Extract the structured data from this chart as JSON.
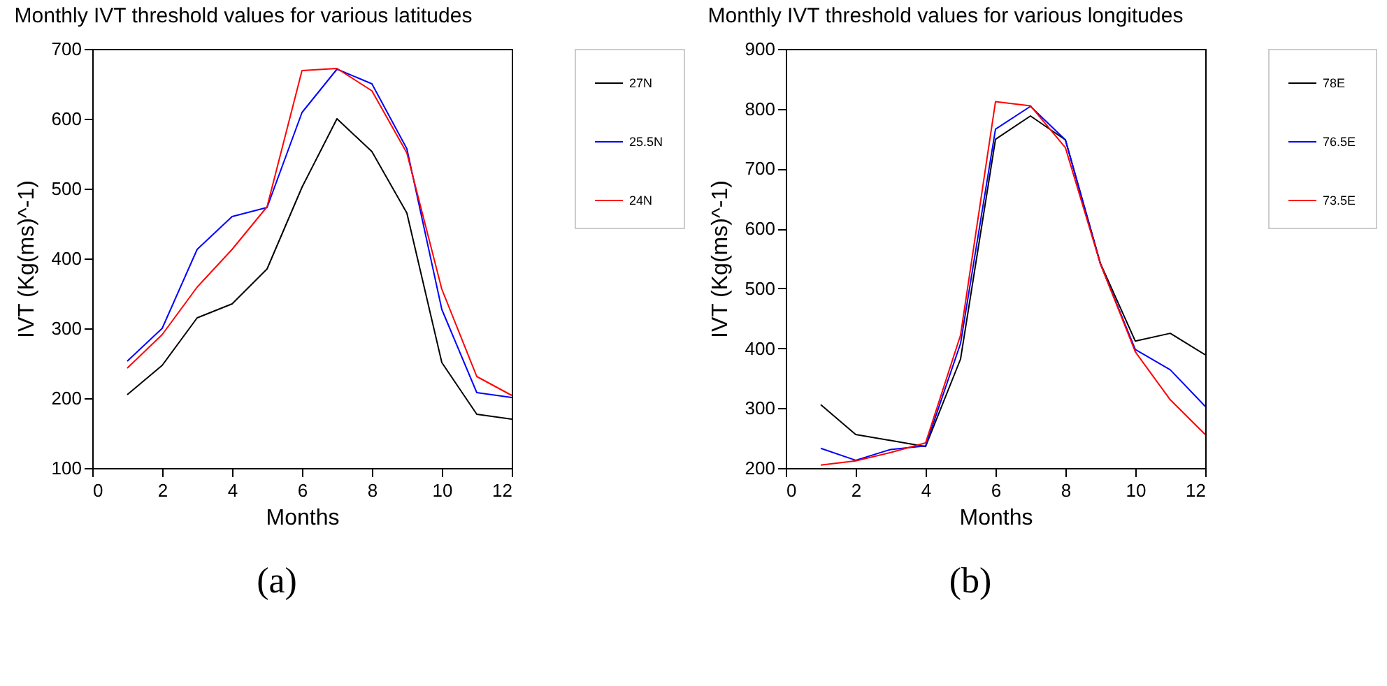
{
  "chart_data": [
    {
      "type": "line",
      "title": "Monthly IVT threshold values for various latitudes",
      "xlabel": "Months",
      "ylabel": "IVT (Kg(ms)^-1)",
      "x": [
        1,
        2,
        3,
        4,
        5,
        6,
        7,
        8,
        9,
        10,
        11,
        12
      ],
      "xlim": [
        0,
        12
      ],
      "xticks": [
        0,
        2,
        4,
        6,
        8,
        10,
        12
      ],
      "ylim": [
        100,
        700
      ],
      "yticks": [
        100,
        200,
        300,
        400,
        500,
        600,
        700
      ],
      "grid": false,
      "legend": "right",
      "annotations": [
        "(a)"
      ],
      "series": [
        {
          "name": "27N",
          "color": "#000000",
          "values": [
            205,
            247,
            315,
            335,
            385,
            502,
            600,
            553,
            465,
            251,
            177,
            170
          ]
        },
        {
          "name": "25.5N",
          "color": "#0000ff",
          "values": [
            253,
            300,
            413,
            460,
            473,
            609,
            671,
            650,
            557,
            327,
            208,
            201
          ]
        },
        {
          "name": "24N",
          "color": "#ff0000",
          "values": [
            243,
            291,
            359,
            413,
            474,
            669,
            672,
            640,
            551,
            356,
            231,
            204
          ]
        }
      ]
    },
    {
      "type": "line",
      "title": "Monthly IVT threshold values for various longitudes",
      "xlabel": "Months",
      "ylabel": "IVT (Kg(ms)^-1)",
      "x": [
        1,
        2,
        3,
        4,
        5,
        6,
        7,
        8,
        9,
        10,
        11,
        12
      ],
      "xlim": [
        0,
        12
      ],
      "xticks": [
        0,
        2,
        4,
        6,
        8,
        10,
        12
      ],
      "ylim": [
        200,
        900
      ],
      "yticks": [
        200,
        300,
        400,
        500,
        600,
        700,
        800,
        900
      ],
      "grid": false,
      "legend": "right",
      "annotations": [
        "(b)"
      ],
      "series": [
        {
          "name": "78E",
          "color": "#000000",
          "values": [
            306,
            256,
            246,
            236,
            382,
            749,
            788,
            748,
            542,
            412,
            425,
            389
          ]
        },
        {
          "name": "76.5E",
          "color": "#0000ff",
          "values": [
            233,
            213,
            231,
            237,
            408,
            766,
            804,
            748,
            541,
            398,
            364,
            303
          ]
        },
        {
          "name": "73.5E",
          "color": "#ff0000",
          "values": [
            205,
            212,
            226,
            242,
            422,
            812,
            805,
            735,
            541,
            394,
            314,
            256
          ]
        }
      ]
    }
  ]
}
